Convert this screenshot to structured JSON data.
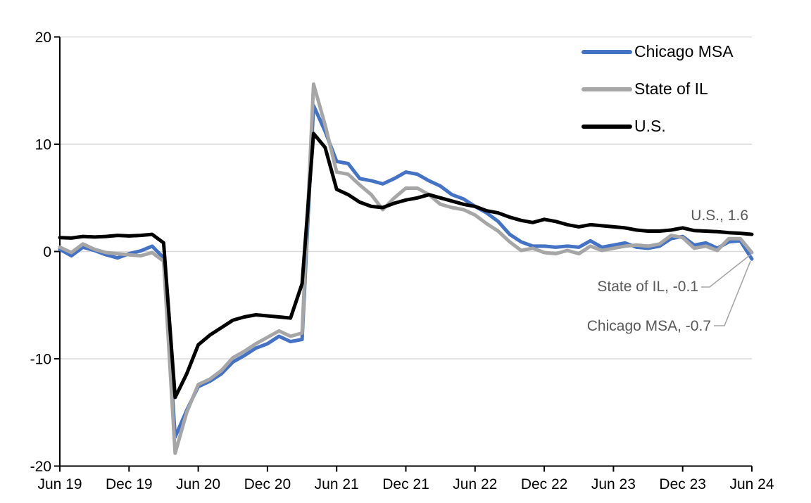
{
  "chart_data": {
    "type": "line",
    "title": "",
    "xlabel": "",
    "ylabel": "",
    "ylim": [
      -20,
      20
    ],
    "y_ticks": [
      20,
      10,
      0,
      -10,
      -20
    ],
    "grid": true,
    "legend_position": "top-right",
    "x": [
      "Jun 2019",
      "Jul 2019",
      "Aug 2019",
      "Sep 2019",
      "Oct 2019",
      "Nov 2019",
      "Dec 2019",
      "Jan 2020",
      "Feb 2020",
      "Mar 2020",
      "Apr 2020",
      "May 2020",
      "Jun 2020",
      "Jul 2020",
      "Aug 2020",
      "Sep 2020",
      "Oct 2020",
      "Nov 2020",
      "Dec 2020",
      "Jan 2021",
      "Feb 2021",
      "Mar 2021",
      "Apr 2021",
      "May 2021",
      "Jun 2021",
      "Jul 2021",
      "Aug 2021",
      "Sep 2021",
      "Oct 2021",
      "Nov 2021",
      "Dec 2021",
      "Jan 2022",
      "Feb 2022",
      "Mar 2022",
      "Apr 2022",
      "May 2022",
      "Jun 2022",
      "Jul 2022",
      "Aug 2022",
      "Sep 2022",
      "Oct 2022",
      "Nov 2022",
      "Dec 2022",
      "Jan 2023",
      "Feb 2023",
      "Mar 2023",
      "Apr 2023",
      "May 2023",
      "Jun 2023",
      "Jul 2023",
      "Aug 2023",
      "Sep 2023",
      "Oct 2023",
      "Nov 2023",
      "Dec 2023",
      "Jan 2024",
      "Feb 2024",
      "Mar 2024",
      "Apr 2024",
      "May 2024",
      "Jun 2024"
    ],
    "x_tick_labels": [
      "Jun 19",
      "Dec 19",
      "Jun 20",
      "Dec 20",
      "Jun 21",
      "Dec 21",
      "Jun 22",
      "Dec 22",
      "Jun 23",
      "Dec 23",
      "Jun 24"
    ],
    "x_tick_every": 6,
    "series": [
      {
        "name": "Chicago MSA",
        "color": "#4472C4",
        "values": [
          0.2,
          -0.4,
          0.4,
          0.1,
          -0.3,
          -0.6,
          -0.2,
          0.05,
          0.5,
          -0.6,
          -17.3,
          -14.8,
          -12.6,
          -12.1,
          -11.4,
          -10.3,
          -9.7,
          -9.0,
          -8.6,
          -7.9,
          -8.4,
          -8.2,
          13.6,
          11.2,
          8.4,
          8.2,
          6.8,
          6.6,
          6.3,
          6.8,
          7.4,
          7.2,
          6.6,
          6.1,
          5.3,
          4.9,
          4.2,
          3.6,
          2.8,
          1.6,
          0.9,
          0.5,
          0.5,
          0.4,
          0.5,
          0.4,
          1.0,
          0.4,
          0.6,
          0.8,
          0.4,
          0.3,
          0.5,
          1.2,
          1.4,
          0.6,
          0.8,
          0.3,
          0.9,
          1.0,
          -0.7
        ]
      },
      {
        "name": "State of IL",
        "color": "#A6A6A6",
        "values": [
          0.4,
          -0.1,
          0.7,
          0.2,
          -0.1,
          -0.2,
          -0.3,
          -0.4,
          -0.1,
          -0.9,
          -18.8,
          -15.0,
          -12.4,
          -11.9,
          -11.1,
          -9.9,
          -9.3,
          -8.6,
          -8.0,
          -7.4,
          -7.9,
          -7.6,
          15.6,
          11.8,
          7.4,
          7.2,
          6.2,
          5.3,
          3.9,
          5.0,
          5.9,
          5.9,
          5.3,
          4.4,
          4.1,
          3.9,
          3.4,
          2.6,
          1.9,
          0.9,
          0.1,
          0.3,
          -0.1,
          -0.2,
          0.1,
          -0.2,
          0.5,
          0.1,
          0.3,
          0.5,
          0.6,
          0.5,
          0.7,
          1.5,
          1.3,
          0.3,
          0.5,
          0.1,
          1.2,
          1.2,
          -0.1
        ]
      },
      {
        "name": "U.S.",
        "color": "#000000",
        "values": [
          1.3,
          1.25,
          1.4,
          1.35,
          1.4,
          1.5,
          1.45,
          1.5,
          1.6,
          0.8,
          -13.6,
          -11.4,
          -8.7,
          -7.8,
          -7.1,
          -6.4,
          -6.1,
          -5.9,
          -6.0,
          -6.1,
          -6.2,
          -3.0,
          11.0,
          9.7,
          5.8,
          5.3,
          4.6,
          4.2,
          4.1,
          4.5,
          4.8,
          5.0,
          5.3,
          5.0,
          4.7,
          4.4,
          4.2,
          3.8,
          3.6,
          3.2,
          2.9,
          2.7,
          3.0,
          2.8,
          2.5,
          2.3,
          2.5,
          2.4,
          2.3,
          2.2,
          2.0,
          1.9,
          1.9,
          2.0,
          2.2,
          1.95,
          1.9,
          1.85,
          1.75,
          1.7,
          1.6
        ]
      }
    ],
    "annotations": [
      {
        "text": "U.S., 1.6",
        "series": "U.S.",
        "value": 1.6
      },
      {
        "text": "State of IL, -0.1",
        "series": "State of IL",
        "value": -0.1
      },
      {
        "text": "Chicago MSA, -0.7",
        "series": "Chicago MSA",
        "value": -0.7
      }
    ],
    "colors": {
      "gridline": "#D9D9D9",
      "axis": "#000000",
      "tick_label": "#000000",
      "annotation_text": "#595959",
      "leader_line": "#A6A6A6",
      "background": "#FFFFFF"
    }
  }
}
